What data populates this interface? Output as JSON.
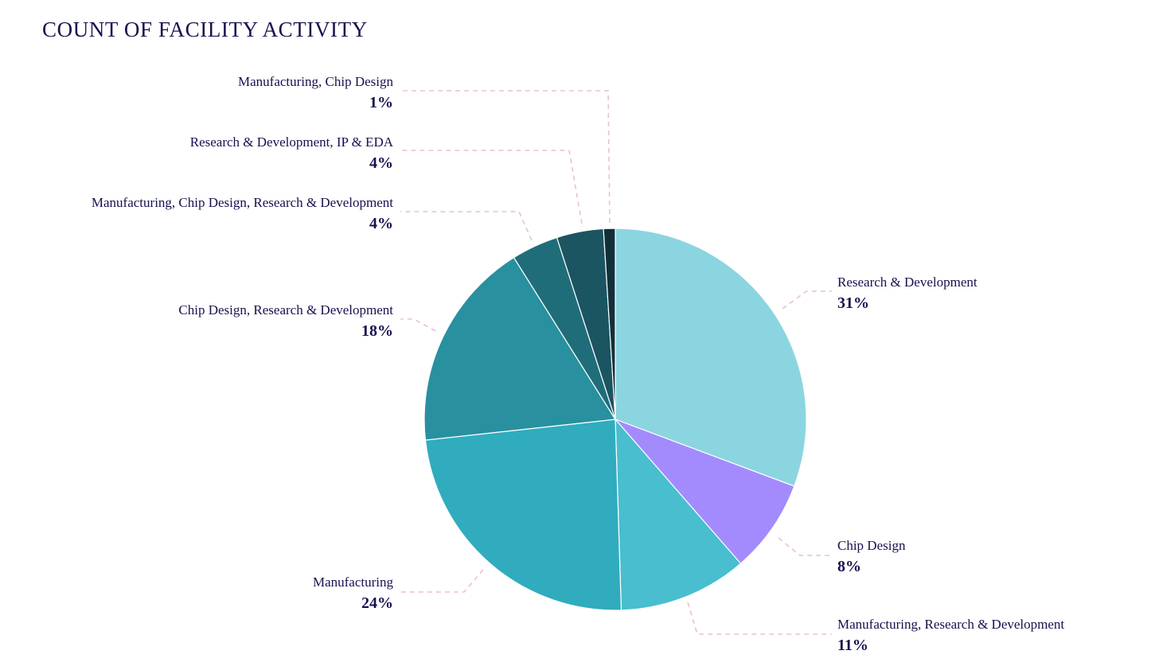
{
  "title": "COUNT OF FACILITY ACTIVITY",
  "chart_data": {
    "type": "pie",
    "title": "COUNT OF FACILITY ACTIVITY",
    "start_angle_deg": 0,
    "direction": "clockwise",
    "slices": [
      {
        "label": "Research & Development",
        "percent_label": "31%",
        "value": 31,
        "color": "#8bd5e1"
      },
      {
        "label": "Chip Design",
        "percent_label": "8%",
        "value": 8,
        "color": "#a38bfd"
      },
      {
        "label": "Manufacturing, Research & Development",
        "percent_label": "11%",
        "value": 11,
        "color": "#48bece"
      },
      {
        "label": "Manufacturing",
        "percent_label": "24%",
        "value": 24,
        "color": "#30acbe"
      },
      {
        "label": "Chip Design, Research & Development",
        "percent_label": "18%",
        "value": 18,
        "color": "#28909f"
      },
      {
        "label": "Manufacturing, Chip Design, Research & Development",
        "percent_label": "4%",
        "value": 4,
        "color": "#206d7a"
      },
      {
        "label": "Research & Development, IP & EDA",
        "percent_label": "4%",
        "value": 4,
        "color": "#1a5561"
      },
      {
        "label": "Manufacturing, Chip Design",
        "percent_label": "1%",
        "value": 1,
        "color": "#12303a"
      }
    ]
  }
}
